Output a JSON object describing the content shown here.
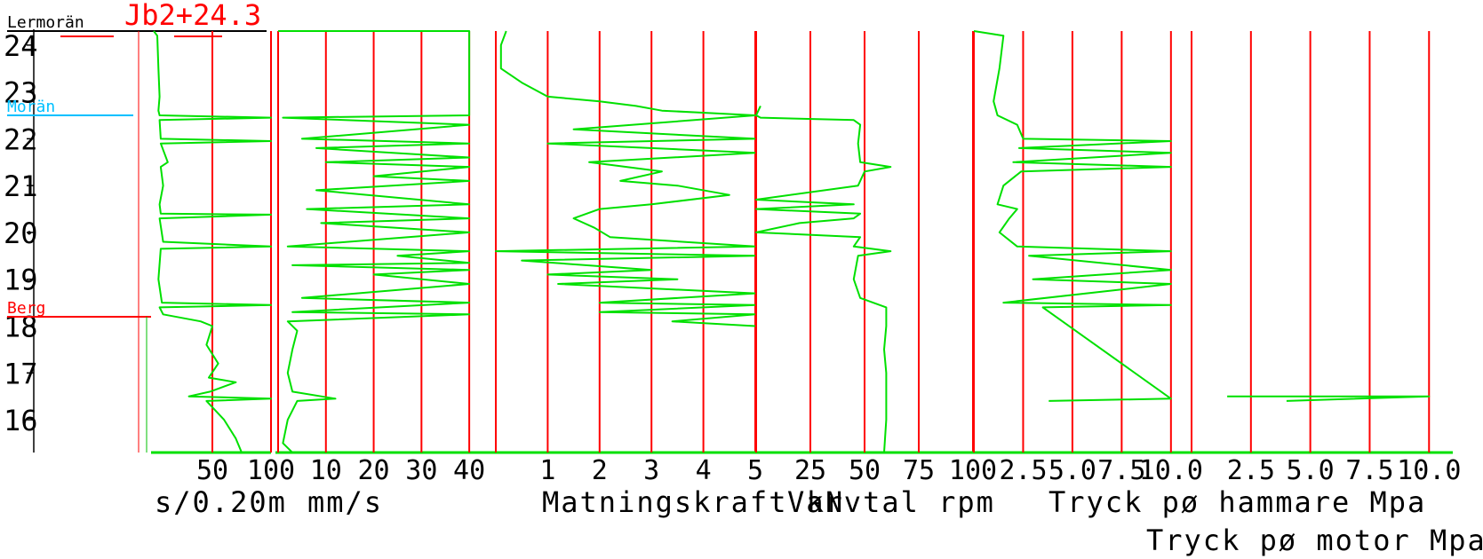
{
  "chart_data": {
    "type": "line",
    "title": "Jb2+24.3",
    "yaxis": {
      "ticks": [
        "16",
        "17",
        "18",
        "19",
        "20",
        "21",
        "22",
        "23",
        "24"
      ],
      "range": [
        15.3,
        24.3
      ]
    },
    "layers": [
      {
        "label": "Lermorän",
        "level": 24.3,
        "color": "#000000"
      },
      {
        "label": "Morän",
        "level": 22.5,
        "color": "#00c0ff"
      },
      {
        "label": "Berg",
        "level": 18.2,
        "color": "#ff0000"
      }
    ],
    "panels": [
      {
        "unit_label": "s/0.20m",
        "tick_labels": [
          "50",
          "100"
        ],
        "tick_values": [
          50,
          100
        ],
        "range": [
          0,
          100
        ],
        "series": [
          [
            0,
            24.3
          ],
          [
            3,
            24.2
          ],
          [
            4,
            23.5
          ],
          [
            5,
            22.9
          ],
          [
            4,
            22.6
          ],
          [
            5,
            22.5
          ],
          [
            100,
            22.45
          ],
          [
            5,
            22.4
          ],
          [
            6,
            22.0
          ],
          [
            100,
            21.95
          ],
          [
            6,
            21.9
          ],
          [
            12,
            21.5
          ],
          [
            6,
            21.4
          ],
          [
            8,
            21.0
          ],
          [
            5,
            20.6
          ],
          [
            6,
            20.4
          ],
          [
            100,
            20.38
          ],
          [
            5,
            20.3
          ],
          [
            8,
            19.8
          ],
          [
            100,
            19.7
          ],
          [
            6,
            19.65
          ],
          [
            4,
            19.0
          ],
          [
            7,
            18.5
          ],
          [
            100,
            18.45
          ],
          [
            5,
            18.4
          ],
          [
            8,
            18.25
          ],
          [
            40,
            18.1
          ],
          [
            50,
            18.0
          ],
          [
            45,
            17.6
          ],
          [
            55,
            17.2
          ],
          [
            47,
            16.9
          ],
          [
            70,
            16.8
          ],
          [
            48,
            16.6
          ],
          [
            30,
            16.5
          ],
          [
            100,
            16.45
          ],
          [
            45,
            16.4
          ],
          [
            60,
            16.0
          ],
          [
            70,
            15.6
          ],
          [
            75,
            15.3
          ]
        ]
      },
      {
        "unit_label": "mm/s",
        "tick_labels": [
          "10",
          "20",
          "30",
          "40"
        ],
        "tick_values": [
          10,
          20,
          30,
          40
        ],
        "range": [
          0,
          45
        ],
        "series": [
          [
            0,
            24.3
          ],
          [
            40,
            24.3
          ],
          [
            40,
            22.9
          ],
          [
            40,
            22.5
          ],
          [
            1,
            22.45
          ],
          [
            40,
            22.3
          ],
          [
            5,
            22.0
          ],
          [
            40,
            21.9
          ],
          [
            8,
            21.8
          ],
          [
            40,
            21.6
          ],
          [
            10,
            21.5
          ],
          [
            40,
            21.4
          ],
          [
            20,
            21.2
          ],
          [
            40,
            21.1
          ],
          [
            8,
            20.9
          ],
          [
            40,
            20.6
          ],
          [
            6,
            20.5
          ],
          [
            40,
            20.3
          ],
          [
            9,
            20.2
          ],
          [
            40,
            20.0
          ],
          [
            2,
            19.7
          ],
          [
            40,
            19.6
          ],
          [
            25,
            19.5
          ],
          [
            40,
            19.35
          ],
          [
            3,
            19.3
          ],
          [
            40,
            19.2
          ],
          [
            20,
            19.1
          ],
          [
            40,
            18.9
          ],
          [
            5,
            18.6
          ],
          [
            40,
            18.5
          ],
          [
            3,
            18.3
          ],
          [
            40,
            18.25
          ],
          [
            2,
            18.1
          ],
          [
            4,
            17.9
          ],
          [
            3,
            17.5
          ],
          [
            2,
            17.0
          ],
          [
            3,
            16.6
          ],
          [
            12,
            16.45
          ],
          [
            4,
            16.4
          ],
          [
            2,
            16.0
          ],
          [
            1,
            15.5
          ],
          [
            3,
            15.3
          ]
        ]
      },
      {
        "unit_label": "Matningskraft kN",
        "tick_labels": [
          "1",
          "2",
          "3",
          "4",
          "5"
        ],
        "tick_values": [
          1,
          2,
          3,
          4,
          5
        ],
        "range": [
          0,
          5
        ],
        "series": [
          [
            0.2,
            24.3
          ],
          [
            0.1,
            24.0
          ],
          [
            0.1,
            23.5
          ],
          [
            0.5,
            23.2
          ],
          [
            1.0,
            22.9
          ],
          [
            2.0,
            22.8
          ],
          [
            2.7,
            22.7
          ],
          [
            3.2,
            22.6
          ],
          [
            5,
            22.5
          ],
          [
            1.5,
            22.2
          ],
          [
            5,
            22.0
          ],
          [
            1.0,
            21.9
          ],
          [
            5,
            21.7
          ],
          [
            1.8,
            21.5
          ],
          [
            3.2,
            21.3
          ],
          [
            2.4,
            21.1
          ],
          [
            3.5,
            21.0
          ],
          [
            4.5,
            20.8
          ],
          [
            3.0,
            20.6
          ],
          [
            2.0,
            20.5
          ],
          [
            1.5,
            20.3
          ],
          [
            1.9,
            20.1
          ],
          [
            2.2,
            19.9
          ],
          [
            5,
            19.7
          ],
          [
            0,
            19.6
          ],
          [
            5,
            19.5
          ],
          [
            0.5,
            19.4
          ],
          [
            3.0,
            19.2
          ],
          [
            1.0,
            19.1
          ],
          [
            3.5,
            19.0
          ],
          [
            1.2,
            18.9
          ],
          [
            5,
            18.7
          ],
          [
            2.0,
            18.5
          ],
          [
            5,
            18.45
          ],
          [
            2.0,
            18.3
          ],
          [
            5,
            18.25
          ],
          [
            3.4,
            18.1
          ],
          [
            5,
            18.0
          ]
        ]
      },
      {
        "unit_label": "Varvtal rpm",
        "tick_labels": [
          "25",
          "50",
          "75",
          "100"
        ],
        "tick_values": [
          25,
          50,
          75,
          100
        ],
        "range": [
          0,
          100
        ],
        "series": [
          [
            2,
            22.7
          ],
          [
            0,
            22.5
          ],
          [
            2,
            22.45
          ],
          [
            45,
            22.4
          ],
          [
            48,
            22.3
          ],
          [
            47,
            21.9
          ],
          [
            48,
            21.5
          ],
          [
            62,
            21.4
          ],
          [
            50,
            21.3
          ],
          [
            47,
            21.0
          ],
          [
            0,
            20.7
          ],
          [
            45,
            20.6
          ],
          [
            0,
            20.5
          ],
          [
            48,
            20.4
          ],
          [
            45,
            20.3
          ],
          [
            20,
            20.2
          ],
          [
            0,
            20.0
          ],
          [
            48,
            19.9
          ],
          [
            45,
            19.7
          ],
          [
            62,
            19.6
          ],
          [
            47,
            19.5
          ],
          [
            45,
            19.0
          ],
          [
            48,
            18.6
          ],
          [
            60,
            18.4
          ],
          [
            60,
            18.0
          ],
          [
            59,
            17.5
          ],
          [
            60,
            17.0
          ],
          [
            60,
            16.5
          ],
          [
            60,
            16.0
          ],
          [
            59,
            15.3
          ]
        ]
      },
      {
        "unit_label": "Tryck pø hammare Mpa",
        "tick_labels": [
          "2.5",
          "5.0",
          "7.5",
          "10.0"
        ],
        "tick_values": [
          2.5,
          5.0,
          7.5,
          10.0
        ],
        "range": [
          0,
          11
        ],
        "series": [
          [
            0,
            24.3
          ],
          [
            1.5,
            24.2
          ],
          [
            1.3,
            23.5
          ],
          [
            1.0,
            22.8
          ],
          [
            1.2,
            22.5
          ],
          [
            2.2,
            22.3
          ],
          [
            2.5,
            22.0
          ],
          [
            10,
            21.95
          ],
          [
            2.3,
            21.8
          ],
          [
            10,
            21.7
          ],
          [
            2.0,
            21.5
          ],
          [
            10,
            21.4
          ],
          [
            2.4,
            21.3
          ],
          [
            1.5,
            21.0
          ],
          [
            1.2,
            20.6
          ],
          [
            2.2,
            20.5
          ],
          [
            1.8,
            20.3
          ],
          [
            1.3,
            20.0
          ],
          [
            2.2,
            19.7
          ],
          [
            10,
            19.6
          ],
          [
            2.8,
            19.5
          ],
          [
            10,
            19.2
          ],
          [
            3.0,
            19.0
          ],
          [
            10,
            18.9
          ],
          [
            1.5,
            18.5
          ],
          [
            10,
            18.45
          ],
          [
            3.5,
            18.4
          ],
          [
            10,
            16.45
          ],
          [
            3.8,
            16.4
          ]
        ]
      },
      {
        "unit_label": "Tryck pø motor Mpa",
        "tick_labels": [
          "2.5",
          "5.0",
          "7.5",
          "10.0"
        ],
        "tick_values": [
          2.5,
          5.0,
          7.5,
          10.0
        ],
        "range": [
          0,
          11
        ],
        "series": [
          [
            1.5,
            16.5
          ],
          [
            10,
            16.5
          ],
          [
            4,
            16.4
          ]
        ]
      }
    ]
  }
}
